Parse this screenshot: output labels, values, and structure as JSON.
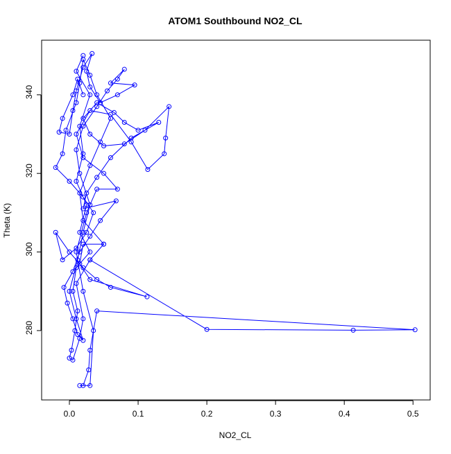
{
  "chart_data": {
    "type": "line",
    "title": "ATOM1 Southbound NO2_CL",
    "x_label": "NO2_CL",
    "y_label": "Theta (K)",
    "color": "#0000ff",
    "marker": "circle",
    "grid": false,
    "xlim": [
      -0.0404,
      0.525
    ],
    "ylim": [
      262.35,
      353.9
    ],
    "xticks": [
      {
        "value": 0,
        "label": "0.0"
      },
      0.1,
      0.2,
      0.3,
      0.4,
      0.5
    ],
    "yticks": [
      280,
      300,
      320,
      340
    ],
    "x": [
      0.02,
      0.01,
      0.03,
      0.015,
      0.02,
      0.01,
      0.025,
      0.015,
      0.03,
      0.01,
      0.005,
      0.012,
      0.008,
      0.003,
      0.0,
      0.005,
      0.015,
      0.02,
      0.01,
      0.03,
      0.05,
      0.02,
      0.015,
      0.03,
      0.045,
      0.06,
      0.04,
      0.03,
      0.02,
      0.015,
      0.01,
      -0.005,
      -0.01,
      -0.02,
      0.0,
      0.02,
      0.035,
      0.025,
      0.01,
      -0.01,
      -0.02,
      0.0,
      0.02,
      0.04,
      0.06,
      0.113,
      0.03,
      0.015,
      0.02,
      0.05,
      0.03,
      0.2,
      0.413,
      0.503,
      0.04,
      0.03,
      0.028,
      0.02,
      0.015,
      0.03,
      0.035,
      0.02,
      0.01,
      0.025,
      0.04,
      0.07,
      0.05,
      0.02,
      0.01,
      0.03,
      0.06,
      0.09,
      0.114,
      0.138,
      0.14,
      0.145,
      0.11,
      0.08,
      0.05,
      0.03,
      0.02,
      0.04,
      0.065,
      0.08,
      0.1,
      0.13,
      0.09,
      0.06,
      0.04,
      0.025,
      0.02,
      0.068,
      0.045,
      0.03,
      0.015,
      0.005,
      -0.008,
      -0.003,
      0.005,
      0.012,
      0.02,
      0.01,
      0.0,
      0.012,
      0.02,
      0.03,
      0.015,
      0.01,
      0.02,
      0.04,
      0.055,
      0.07,
      0.08,
      0.06,
      0.095,
      0.07,
      0.045,
      0.03,
      0.025,
      0.033,
      0.02,
      0.01,
      0.005,
      0.0,
      -0.015,
      -0.01,
      0.005,
      0.012,
      0.02
    ],
    "values": [
      350,
      346,
      340,
      332,
      325,
      318,
      312,
      305,
      300,
      296,
      290,
      285,
      280,
      275,
      273,
      272.5,
      278,
      283,
      292,
      298,
      302,
      308,
      315,
      322,
      328,
      334,
      340,
      345,
      349,
      343,
      338,
      331,
      325,
      321.5,
      318,
      314,
      310,
      305,
      301,
      298,
      305,
      300,
      296,
      293,
      291,
      288.6,
      293,
      297,
      302,
      302,
      298,
      280.3,
      280.1,
      280.2,
      285,
      275,
      270,
      266,
      266,
      266,
      280,
      290,
      300,
      310,
      316,
      316,
      320,
      324,
      330,
      336,
      335,
      328,
      321,
      325,
      329,
      337,
      331,
      327.5,
      327,
      330,
      334,
      338,
      335.5,
      333,
      331,
      333,
      329,
      324,
      319,
      315,
      311,
      313,
      308,
      304,
      300,
      295,
      291,
      287,
      283,
      279,
      277.5,
      283,
      290,
      298,
      305,
      312,
      320,
      326,
      332,
      337,
      341,
      344,
      346.5,
      343,
      342.5,
      340,
      338,
      342,
      346,
      350.5,
      347,
      341,
      336,
      330,
      330.5,
      334,
      340,
      344,
      340
    ]
  }
}
